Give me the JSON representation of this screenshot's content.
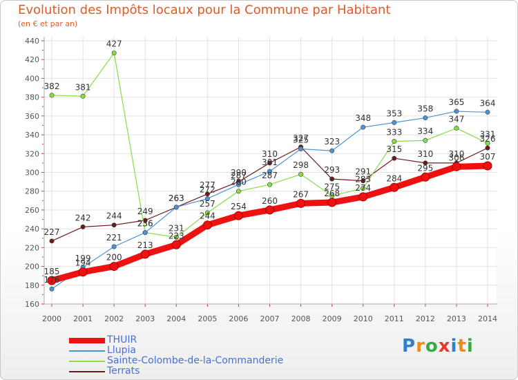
{
  "chart_data": {
    "type": "line",
    "title": "Evolution des Impôts locaux pour la Commune par Habitant",
    "subtitle": "(en € et par an)",
    "categories": [
      "2000",
      "2001",
      "2002",
      "2003",
      "2004",
      "2005",
      "2006",
      "2007",
      "2008",
      "2009",
      "2010",
      "2011",
      "2012",
      "2013",
      "2014"
    ],
    "ylim": [
      160,
      440
    ],
    "yticks": [
      160,
      180,
      200,
      220,
      240,
      260,
      280,
      300,
      320,
      340,
      360,
      380,
      400,
      420,
      440
    ],
    "grid": true,
    "series": [
      {
        "name": "Terrats",
        "color": "#6b1a1a",
        "values": [
          227,
          242,
          244,
          249,
          263,
          277,
          290,
          310,
          327,
          293,
          291,
          315,
          310,
          310,
          326
        ],
        "labels": [
          "227",
          "242",
          "244",
          "249",
          "263",
          "277",
          "290",
          "310",
          "327",
          "293",
          "291",
          "315",
          "310",
          "310",
          "326"
        ]
      },
      {
        "name": "Sainte-Colombe-de-la-Commanderie",
        "color": "#88dd44",
        "values": [
          382,
          381,
          427,
          236,
          231,
          257,
          280,
          287,
          298,
          275,
          283,
          333,
          334,
          347,
          331
        ],
        "labels": [
          "382",
          "381",
          "427",
          "236",
          "231",
          "257",
          "280",
          "287",
          "298",
          "275",
          "283",
          "333",
          "334",
          "347",
          "331"
        ]
      },
      {
        "name": "Llupia",
        "color": "#4d93d4",
        "values": [
          176,
          199,
          221,
          236,
          263,
          272,
          287,
          301,
          325,
          323,
          348,
          353,
          358,
          365,
          364
        ],
        "labels": [
          "176",
          "199",
          "221",
          "236",
          "263",
          "272",
          "287",
          "301",
          "325",
          "323",
          "348",
          "353",
          "358",
          "365",
          "364"
        ]
      },
      {
        "name": "THUIR",
        "color": "#ee1111",
        "values": [
          185,
          194,
          200,
          213,
          223,
          244,
          254,
          260,
          267,
          268,
          274,
          284,
          295,
          306,
          307
        ],
        "labels": [
          "185",
          "194",
          "200",
          "213",
          "223",
          "244",
          "254",
          "260",
          "267",
          "268",
          "274",
          "284",
          "295",
          "306",
          "307"
        ]
      }
    ],
    "legend": [
      "THUIR",
      "Llupia",
      "Sainte-Colombe-de-la-Commanderie",
      "Terrats"
    ]
  },
  "legend_items": [
    {
      "label": "THUIR",
      "color": "#ee1111"
    },
    {
      "label": "Llupia",
      "color": "#4d93d4"
    },
    {
      "label": "Sainte-Colombe-de-la-Commanderie",
      "color": "#88dd44"
    },
    {
      "label": "Terrats",
      "color": "#6b1a1a"
    }
  ],
  "brand": {
    "letters": [
      "P",
      "r",
      "o",
      "x",
      "i",
      "t",
      "i"
    ],
    "colors": [
      "#2f7fd0",
      "#f08a18",
      "#3aa844",
      "#e03a2a",
      "#2f7fd0",
      "#f08a18",
      "#3aa844"
    ]
  }
}
